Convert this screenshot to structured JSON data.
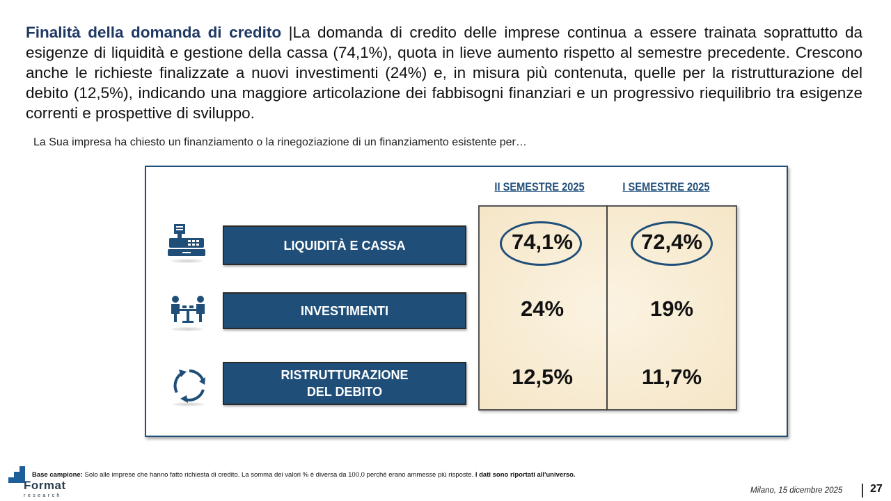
{
  "intro": {
    "lead": "Finalità della domanda di credito",
    "separator": " |",
    "text": "La domanda di credito delle imprese continua a essere trainata soprattutto da esigenze di liquidità e gestione della cassa (74,1%), quota in lieve aumento rispetto al semestre precedente. Crescono anche le richieste finalizzate a nuovi investimenti (24%) e, in misura più contenuta, quelle per la ristrutturazione del debito (12,5%), indicando una maggiore articolazione dei fabbisogni finanziari e un progressivo riequilibrio tra esigenze correnti e prospettive di sviluppo."
  },
  "question": "La Sua impresa ha chiesto un finanziamento o la rinegoziazione di un finanziamento esistente per…",
  "table": {
    "columns": [
      "II SEMESTRE 2025",
      "I SEMESTRE 2025"
    ],
    "rows": [
      {
        "label": "LIQUIDITÀ E CASSA",
        "icon": "cash-register-icon",
        "values": [
          "74,1%",
          "72,4%"
        ],
        "highlighted": true
      },
      {
        "label": "INVESTIMENTI",
        "icon": "meeting-icon",
        "values": [
          "24%",
          "19%"
        ],
        "highlighted": false
      },
      {
        "label_line1": "RISTRUTTURAZIONE",
        "label_line2": "DEL DEBITO",
        "icon": "refresh-cycle-icon",
        "values": [
          "12,5%",
          "11,7%"
        ],
        "highlighted": false
      }
    ]
  },
  "footnote": {
    "label": "Base campione:",
    "text": " Solo alle imprese che hanno fatto richiesta di credito. La somma dei valori % è diversa da 100,0 perché erano ammesse più risposte.",
    "emphasis": " I dati sono riportati all'universo."
  },
  "logo": {
    "word": "Format",
    "sub": "research"
  },
  "date": "Milano, 15 dicembre 2025",
  "page_number": "27",
  "colors": {
    "accent": "#1f4e79",
    "title": "#1f3864",
    "cell_bg": "#f7ead0"
  }
}
